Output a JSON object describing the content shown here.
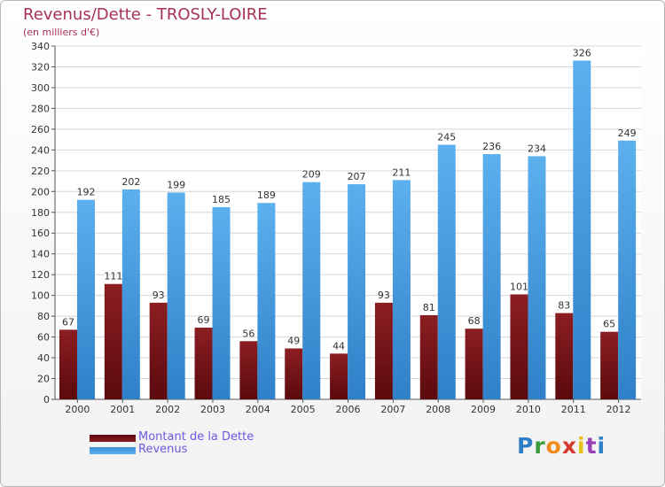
{
  "chart_data": {
    "type": "bar",
    "title": "Revenus/Dette - TROSLY-LOIRE",
    "subtitle": "(en milliers d'€)",
    "categories": [
      "2000",
      "2001",
      "2002",
      "2003",
      "2004",
      "2005",
      "2006",
      "2007",
      "2008",
      "2009",
      "2010",
      "2011",
      "2012"
    ],
    "series": [
      {
        "name": "Montant de la Dette",
        "color": "#7a1418",
        "values": [
          67,
          111,
          93,
          69,
          56,
          49,
          44,
          93,
          81,
          68,
          101,
          83,
          65
        ]
      },
      {
        "name": "Revenus",
        "color": "#4da3e6",
        "values": [
          192,
          202,
          199,
          185,
          189,
          209,
          207,
          211,
          245,
          236,
          234,
          326,
          249
        ]
      }
    ],
    "ylim": [
      0,
      340
    ],
    "yticks": [
      0,
      20,
      40,
      60,
      80,
      100,
      120,
      140,
      160,
      180,
      200,
      220,
      240,
      260,
      280,
      300,
      320,
      340
    ],
    "grid": true,
    "legend_position": "bottom-left"
  },
  "logo": {
    "letters": [
      "P",
      "r",
      "o",
      "x",
      "i",
      "t",
      "i"
    ]
  }
}
